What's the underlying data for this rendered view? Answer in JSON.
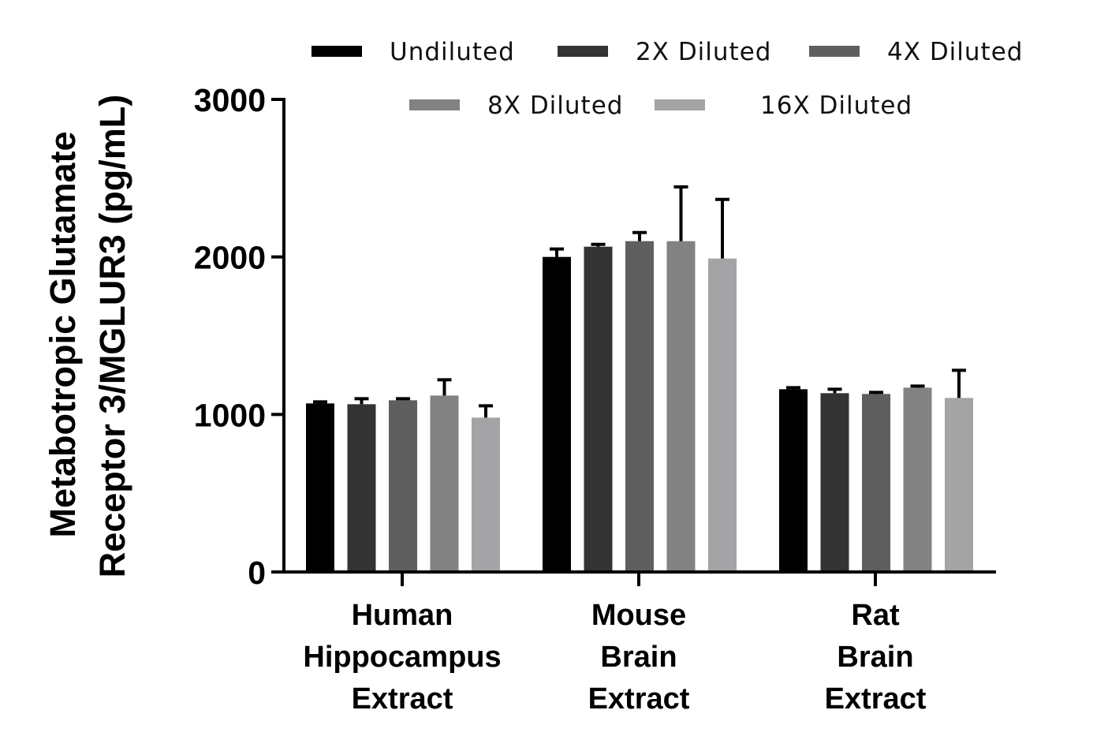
{
  "chart_data": {
    "type": "bar",
    "title": "",
    "xlabel": "",
    "ylabel_lines": [
      "Metabotropic Glutamate",
      "Receptor 3/MGLUR3 (pg/mL)"
    ],
    "ylim": [
      0,
      3000
    ],
    "yticks": [
      "0",
      "1000",
      "2000",
      "3000"
    ],
    "ytick_values": [
      0,
      1000,
      2000,
      3000
    ],
    "categories": [
      [
        "Human",
        "Hippocampus",
        "Extract"
      ],
      [
        "Mouse",
        "Brain",
        "Extract"
      ],
      [
        "Rat",
        "Brain",
        "Extract"
      ]
    ],
    "legend_position": "top",
    "series": [
      {
        "name": "Undiluted",
        "color": "#000000",
        "values": [
          1070,
          2000,
          1160
        ],
        "errors": [
          10,
          50,
          10
        ]
      },
      {
        "name": "2X Diluted",
        "color": "#333333",
        "values": [
          1065,
          2065,
          1135
        ],
        "errors": [
          35,
          15,
          25
        ]
      },
      {
        "name": "4X Diluted",
        "color": "#5f5f5f",
        "values": [
          1090,
          2100,
          1130
        ],
        "errors": [
          10,
          55,
          10
        ]
      },
      {
        "name": "8X Diluted",
        "color": "#828282",
        "values": [
          1120,
          2100,
          1170
        ],
        "errors": [
          100,
          345,
          10
        ]
      },
      {
        "name": "16X Diluted",
        "color": "#a4a4a7",
        "values": [
          980,
          1990,
          1105
        ],
        "errors": [
          75,
          375,
          175
        ]
      }
    ]
  }
}
